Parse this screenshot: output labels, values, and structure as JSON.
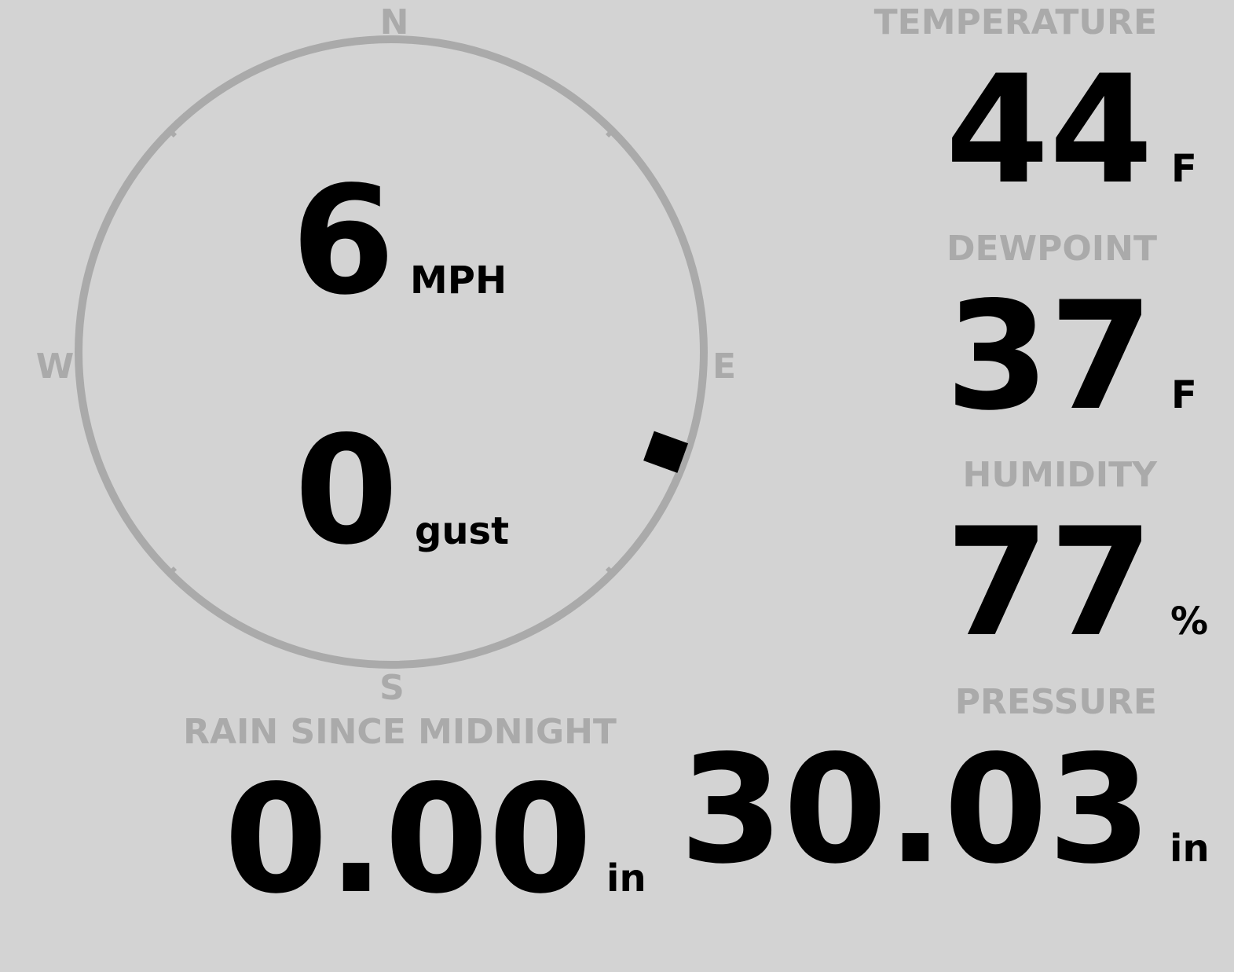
{
  "colors": {
    "background": "#d3d3d3",
    "label": "#aaaaaa",
    "value": "#000000"
  },
  "compass": {
    "north": "N",
    "east": "E",
    "south": "S",
    "west": "W",
    "wind_direction_deg": 110,
    "wind_speed": "6",
    "wind_speed_unit": "MPH",
    "gust": "0",
    "gust_unit": "gust"
  },
  "temperature": {
    "label": "TEMPERATURE",
    "value": "44",
    "unit": "F"
  },
  "dewpoint": {
    "label": "DEWPOINT",
    "value": "37",
    "unit": "F"
  },
  "humidity": {
    "label": "HUMIDITY",
    "value": "77",
    "unit": "%"
  },
  "rain": {
    "label": "RAIN SINCE MIDNIGHT",
    "value": "0.00",
    "unit": "in"
  },
  "pressure": {
    "label": "PRESSURE",
    "value": "30.03",
    "unit": "in"
  }
}
